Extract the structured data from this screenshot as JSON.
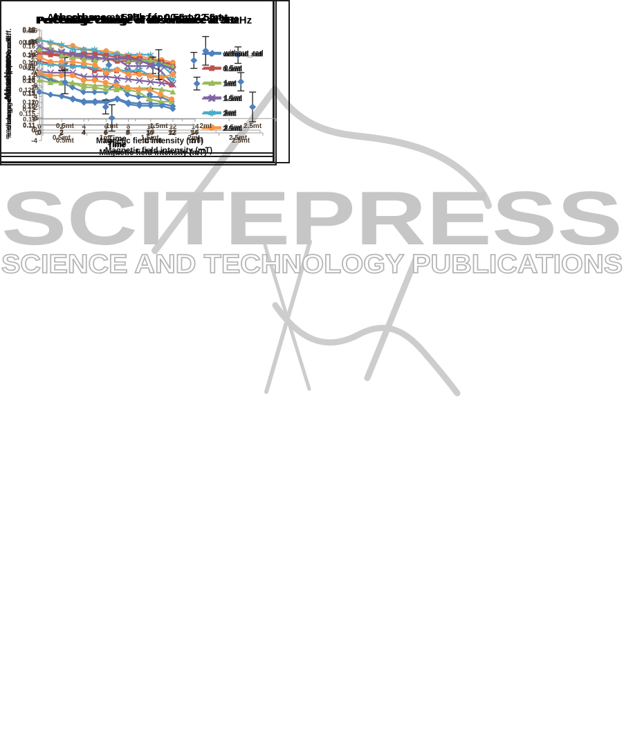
{
  "watermark": {
    "line1": "SCITEPRESS",
    "line2": "SCIENCE AND TECHNOLOGY PUBLICATIONS",
    "solid_color": "#c6c6c6",
    "outline_color": "#b5b5b5",
    "swoosh_color": "#cdcdcd"
  },
  "styles": {
    "tick_color": "#4a3b2f",
    "axis_color": "#9c9c9c",
    "title_color": "#000000",
    "label_color": "#111111",
    "errorbar_color": "#1b1b1b",
    "scatter_marker_color": "#4F81BD"
  },
  "chart_data": [
    {
      "id": "absorbance-3hz",
      "type": "line",
      "title": "Absorbance at 3Hz for 0.5mt-2.5mt",
      "xlabel": "Time",
      "ylabel": "Absorbance",
      "x": [
        0,
        1,
        2,
        3,
        4,
        5,
        6,
        7,
        8,
        9,
        10,
        11,
        12
      ],
      "xlim": [
        0,
        14
      ],
      "xticks": [
        "0",
        "2",
        "4",
        "6",
        "8",
        "10",
        "12",
        "14"
      ],
      "ylim": [
        0.11,
        0.18
      ],
      "yticks": [
        "0.11",
        "0.12",
        "0.13",
        "0.14",
        "0.15",
        "0.16",
        "0.17",
        "0.18"
      ],
      "legend_position": "right",
      "series": [
        {
          "name": "without_rad",
          "color": "#4F81BD",
          "marker": "diamond",
          "values": [
            0.131,
            0.129,
            0.128,
            0.126,
            0.124,
            0.124,
            0.124,
            0.126,
            0.123,
            0.122,
            0.122,
            0.122,
            0.12
          ]
        },
        {
          "name": "0.5mt",
          "color": "#C0504D",
          "marker": "square",
          "values": [
            0.161,
            0.16,
            0.159,
            0.159,
            0.159,
            0.158,
            0.157,
            0.155,
            0.155,
            0.155,
            0.154,
            0.154,
            0.153
          ]
        },
        {
          "name": "1mt",
          "color": "#9BBB59",
          "marker": "triangle",
          "values": [
            0.145,
            0.142,
            0.138,
            0.138,
            0.137,
            0.136,
            0.136,
            0.134,
            0.134,
            0.134,
            0.134,
            0.133,
            0.131
          ]
        },
        {
          "name": "1.5mt",
          "color": "#8064A2",
          "marker": "x",
          "values": [
            0.147,
            0.146,
            0.146,
            0.146,
            0.143,
            0.143,
            0.143,
            0.142,
            0.141,
            0.14,
            0.139,
            0.138,
            0.137
          ]
        },
        {
          "name": "2mt",
          "color": "#4BACC6",
          "marker": "star",
          "values": [
            0.166,
            0.163,
            0.162,
            0.161,
            0.161,
            0.161,
            0.161,
            0.16,
            0.16,
            0.16,
            0.16,
            0.152,
            0.144
          ]
        },
        {
          "name": "2.5mt",
          "color": "#F79646",
          "marker": "circle",
          "values": [
            0.172,
            0.169,
            0.167,
            0.167,
            0.164,
            0.163,
            0.163,
            0.161,
            0.159,
            0.159,
            0.157,
            0.156,
            0.154
          ]
        }
      ]
    },
    {
      "id": "pct-8hz",
      "type": "scatter",
      "title": "Percentage change of absorbance at 8Hz",
      "xlabel": "Magnetic field intensity (mT)",
      "ylabel": "% change of absorption coeff.",
      "categories": [
        "0.5mt",
        "1mt",
        "1.5mt",
        "2mt",
        "2.5mt"
      ],
      "values": [
        22.8,
        22.3,
        22.2,
        16.2,
        16.8
      ],
      "errors": [
        1.9,
        2.1,
        2.7,
        2.1,
        3.0
      ],
      "ylim": [
        0,
        30
      ],
      "yticks": [
        "0",
        "5",
        "10",
        "15",
        "20",
        "25",
        "30"
      ]
    },
    {
      "id": "pct-3hz",
      "type": "scatter",
      "title": "Percentage change of absorbance at 3Hz",
      "xlabel": "Magnetic field intensity (mT)",
      "ylabel": "% change of absorption coeff.",
      "categories": [
        "0.5mt",
        "1mt",
        "1.5mt",
        "2mt",
        "2.5mt"
      ],
      "values": [
        25.7,
        9.3,
        14.3,
        28.0,
        30.1
      ],
      "errors": [
        1.7,
        2.8,
        2.3,
        3.2,
        3.3
      ],
      "ylim": [
        0,
        40
      ],
      "yticks": [
        "0",
        "5",
        "10",
        "15",
        "20",
        "25",
        "30",
        "35",
        "40"
      ]
    },
    {
      "id": "absorbance-500hz",
      "type": "line",
      "title": "Absorbance at 500hz for 0.5mt-2.5mt",
      "xlabel": "Time",
      "ylabel": "Absorbance",
      "x": [
        0,
        1,
        2,
        3,
        4,
        5,
        6,
        7,
        8,
        9,
        10,
        11,
        12
      ],
      "xlim": [
        0,
        14
      ],
      "xticks": [
        "0",
        "2",
        "4",
        "6",
        "8",
        "10",
        "12",
        "14"
      ],
      "ylim": [
        0.11,
        0.15
      ],
      "yticks": [
        "0.11",
        "0.115",
        "0.12",
        "0.125",
        "0.13",
        "0.135",
        "0.14",
        "0.145",
        "0.15"
      ],
      "legend_position": "right",
      "series": [
        {
          "name": "wIthout_rad",
          "color": "#4F81BD",
          "marker": "diamond",
          "values": [
            0.131,
            0.129,
            0.128,
            0.126,
            0.124,
            0.124,
            0.124,
            0.128,
            0.123,
            0.122,
            0.122,
            0.122,
            0.12
          ]
        },
        {
          "name": "0.5mt",
          "color": "#C0504D",
          "marker": "square",
          "values": [
            0.137,
            0.136,
            0.135,
            0.135,
            0.135,
            0.133,
            0.133,
            0.133,
            0.133,
            0.132,
            0.131,
            0.13,
            0.127
          ]
        },
        {
          "name": "1mt",
          "color": "#9BBB59",
          "marker": "triangle",
          "values": [
            0.129,
            0.128,
            0.128,
            0.128,
            0.126,
            0.126,
            0.125,
            0.125,
            0.125,
            0.124,
            0.121,
            0.12,
            0.12
          ]
        },
        {
          "name": "1.5mt",
          "color": "#8064A2",
          "marker": "x",
          "values": [
            0.141,
            0.141,
            0.141,
            0.139,
            0.139,
            0.138,
            0.138,
            0.138,
            0.135,
            0.135,
            0.135,
            0.133,
            0.128
          ]
        },
        {
          "name": "2mt",
          "color": "#4BACC6",
          "marker": "star",
          "values": [
            0.146,
            0.145,
            0.144,
            0.142,
            0.142,
            0.142,
            0.14,
            0.14,
            0.139,
            0.137,
            0.137,
            0.136,
            0.134
          ]
        },
        {
          "name": "2.5mt",
          "color": "#F79646",
          "marker": "circle",
          "values": [
            0.132,
            0.131,
            0.131,
            0.131,
            0.129,
            0.129,
            0.128,
            0.127,
            0.126,
            0.125,
            0.125,
            0.123,
            0.121
          ]
        }
      ]
    },
    {
      "id": "absorbance-8hz",
      "type": "line",
      "title": "Absorbance at 8hz for 0.5mt-2.5mt",
      "xlabel": "Time",
      "ylabel": "Absorbance",
      "x": [
        0,
        1,
        2,
        3,
        4,
        5,
        6,
        7,
        8,
        9,
        10,
        11,
        12
      ],
      "xlim": [
        0,
        14
      ],
      "xticks": [
        "0",
        "2",
        "4",
        "6",
        "8",
        "10",
        "12",
        "14"
      ],
      "ylim": [
        0.11,
        0.17
      ],
      "yticks": [
        "0.11",
        "0.12",
        "0.13",
        "0.14",
        "0.15",
        "0.16",
        "0.17"
      ],
      "legend_position": "right",
      "series": [
        {
          "name": "without_rad",
          "color": "#4F81BD",
          "marker": "diamond",
          "values": [
            0.131,
            0.129,
            0.128,
            0.126,
            0.124,
            0.124,
            0.124,
            0.126,
            0.123,
            0.122,
            0.122,
            0.122,
            0.12
          ]
        },
        {
          "name": "0.5mt",
          "color": "#C0504D",
          "marker": "square",
          "values": [
            0.156,
            0.155,
            0.155,
            0.155,
            0.155,
            0.155,
            0.154,
            0.153,
            0.153,
            0.152,
            0.151,
            0.15,
            0.147
          ]
        },
        {
          "name": "1mt",
          "color": "#9BBB59",
          "marker": "triangle",
          "values": [
            0.158,
            0.159,
            0.154,
            0.153,
            0.152,
            0.151,
            0.152,
            0.152,
            0.151,
            0.151,
            0.151,
            0.149,
            0.147
          ]
        },
        {
          "name": "1.5mt",
          "color": "#8064A2",
          "marker": "x",
          "values": [
            0.16,
            0.157,
            0.156,
            0.155,
            0.154,
            0.153,
            0.152,
            0.152,
            0.152,
            0.151,
            0.148,
            0.148,
            0.145
          ]
        },
        {
          "name": "2mt",
          "color": "#4BACC6",
          "marker": "star",
          "values": [
            0.149,
            0.148,
            0.148,
            0.147,
            0.147,
            0.146,
            0.145,
            0.145,
            0.144,
            0.145,
            0.141,
            0.141,
            0.139
          ]
        },
        {
          "name": "2.5mt",
          "color": "#F79646",
          "marker": "circle",
          "values": [
            0.153,
            0.15,
            0.15,
            0.15,
            0.149,
            0.148,
            0.143,
            0.145,
            0.142,
            0.142,
            0.141,
            0.14,
            0.142
          ]
        }
      ]
    },
    {
      "id": "pct-500hz",
      "type": "scatter",
      "title": "Percentage change of absorbance at 500Hz",
      "xlabel": "Magnetic field intensity (mT)",
      "ylabel": "% change of absorption coeff.",
      "categories": [
        "0.5mt",
        "1mt",
        "1.5mt",
        "2mt",
        "2.5mt"
      ],
      "values": [
        6.6,
        0.1,
        9.8,
        12.3,
        2.1
      ],
      "errors": [
        2.1,
        2.4,
        2.7,
        2.6,
        2.7
      ],
      "ylim": [
        -4,
        16
      ],
      "yticks": [
        "-4",
        "-2",
        "0",
        "2",
        "4",
        "6",
        "8",
        "10",
        "12",
        "14",
        "16"
      ]
    }
  ]
}
